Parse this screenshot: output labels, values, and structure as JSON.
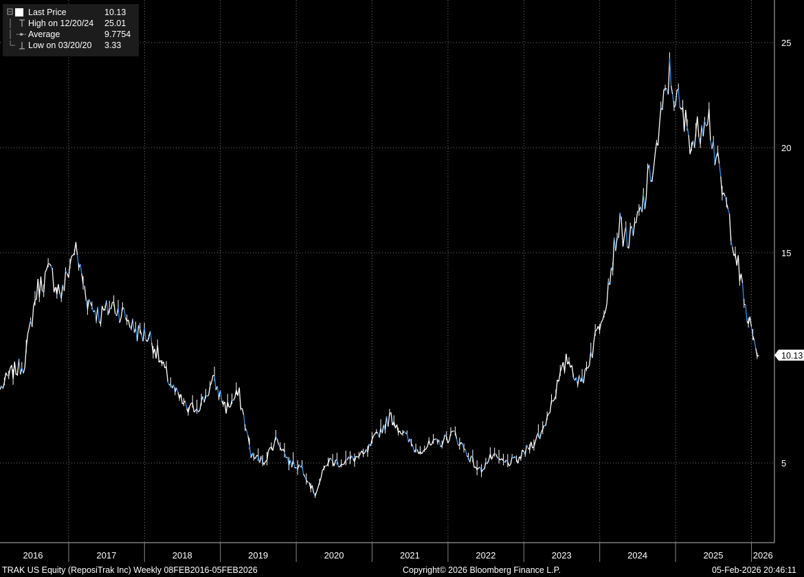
{
  "legend": {
    "last_price_label": "Last Price",
    "last_price_value": "10.13",
    "high_label": "High on 12/20/24",
    "high_value": "25.01",
    "average_label": "Average",
    "average_value": "9.7754",
    "low_label": "Low on 03/20/20",
    "low_value": "3.33"
  },
  "footer": {
    "left": "TRAK US Equity (ReposiTrak Inc) Weekly 08FEB2016-05FEB2026",
    "center": "Copyright© 2026 Bloomberg Finance L.P.",
    "right": "05-Feb-2026 20:46:11"
  },
  "colors": {
    "background": "#000000",
    "price_line": "#ffffff",
    "price_down": "#3a8fe8",
    "grid": "#7a7a7a"
  },
  "chart_data": {
    "type": "line",
    "title": "",
    "xlabel": "",
    "ylabel": "",
    "ylim": [
      1.9,
      27.1
    ],
    "yticks": [
      5,
      15,
      20,
      25
    ],
    "year_labels": [
      "2016",
      "2017",
      "2018",
      "2019",
      "2020",
      "2021",
      "2022",
      "2023",
      "2024",
      "2025",
      "2026"
    ],
    "last_price_tag": "10.13",
    "grid": true,
    "series": [
      {
        "name": "Last Price",
        "x": [
          "2016-02",
          "2016-04",
          "2016-06",
          "2016-08",
          "2016-10",
          "2016-12",
          "2017-02",
          "2017-04",
          "2017-06",
          "2017-08",
          "2017-10",
          "2017-12",
          "2018-02",
          "2018-04",
          "2018-06",
          "2018-08",
          "2018-10",
          "2018-12",
          "2019-02",
          "2019-04",
          "2019-06",
          "2019-08",
          "2019-10",
          "2019-12",
          "2020-02",
          "2020-04",
          "2020-06",
          "2020-08",
          "2020-10",
          "2020-12",
          "2021-02",
          "2021-04",
          "2021-06",
          "2021-08",
          "2021-10",
          "2021-12",
          "2022-02",
          "2022-04",
          "2022-06",
          "2022-08",
          "2022-10",
          "2022-12",
          "2023-02",
          "2023-04",
          "2023-06",
          "2023-08",
          "2023-10",
          "2023-12",
          "2024-02",
          "2024-04",
          "2024-06",
          "2024-08",
          "2024-10",
          "2024-12",
          "2025-02",
          "2025-04",
          "2025-06",
          "2025-08",
          "2025-10",
          "2025-12",
          "2026-02"
        ],
        "y": [
          8.4,
          9.3,
          9.7,
          13.2,
          14.1,
          13.0,
          15.3,
          12.8,
          12.0,
          12.5,
          12.0,
          11.2,
          11.0,
          9.5,
          8.3,
          7.5,
          7.8,
          8.9,
          7.6,
          8.3,
          5.3,
          5.1,
          6.2,
          5.0,
          4.8,
          3.5,
          5.1,
          5.0,
          5.2,
          5.4,
          6.4,
          7.2,
          6.4,
          5.6,
          5.8,
          6.0,
          6.4,
          5.5,
          4.6,
          5.3,
          5.0,
          5.1,
          5.8,
          6.5,
          8.4,
          10.0,
          8.7,
          10.5,
          12.8,
          16.3,
          15.5,
          17.4,
          19.8,
          23.5,
          21.5,
          20.2,
          22.0,
          18.5,
          16.0,
          12.5,
          10.13
        ]
      }
    ]
  }
}
